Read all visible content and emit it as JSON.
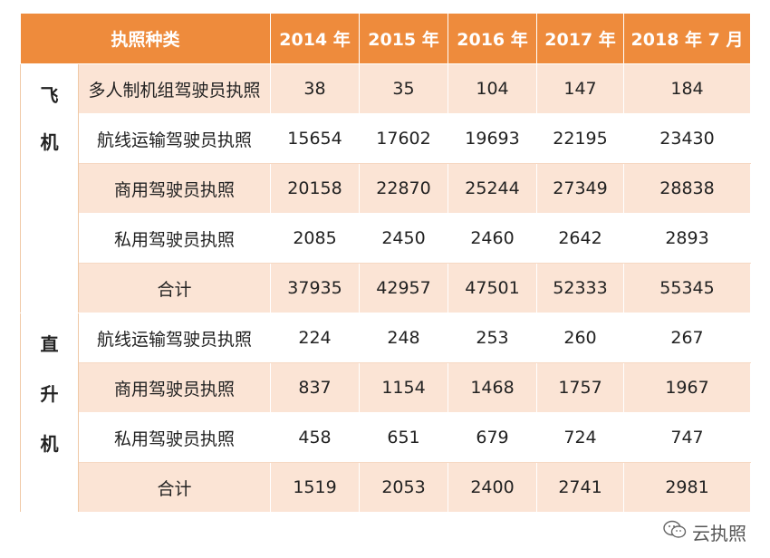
{
  "table": {
    "headers": [
      "执照种类",
      "2014 年",
      "2015 年",
      "2016 年",
      "2017 年",
      "2018 年 7 月"
    ],
    "groups": [
      {
        "label": [
          "飞",
          "机"
        ],
        "rows": [
          {
            "type": "多人制机组驾驶员执照",
            "values": [
              "38",
              "35",
              "104",
              "147",
              "184"
            ]
          },
          {
            "type": "航线运输驾驶员执照",
            "values": [
              "15654",
              "17602",
              "19693",
              "22195",
              "23430"
            ]
          },
          {
            "type": "商用驾驶员执照",
            "values": [
              "20158",
              "22870",
              "25244",
              "27349",
              "28838"
            ]
          },
          {
            "type": "私用驾驶员执照",
            "values": [
              "2085",
              "2450",
              "2460",
              "2642",
              "2893"
            ]
          },
          {
            "type": "合计",
            "values": [
              "37935",
              "42957",
              "47501",
              "52333",
              "55345"
            ]
          }
        ]
      },
      {
        "label": [
          "直",
          "升",
          "机"
        ],
        "rows": [
          {
            "type": "航线运输驾驶员执照",
            "values": [
              "224",
              "248",
              "253",
              "260",
              "267"
            ]
          },
          {
            "type": "商用驾驶员执照",
            "values": [
              "837",
              "1154",
              "1468",
              "1757",
              "1967"
            ]
          },
          {
            "type": "私用驾驶员执照",
            "values": [
              "458",
              "651",
              "679",
              "724",
              "747"
            ]
          },
          {
            "type": "合计",
            "values": [
              "1519",
              "2053",
              "2400",
              "2741",
              "2981"
            ]
          }
        ]
      }
    ]
  },
  "watermark": {
    "icon": "wechat-icon",
    "text": "云执照"
  },
  "colors": {
    "header_bg": "#ee8b3c",
    "row_tint": "#fbe4d5"
  }
}
